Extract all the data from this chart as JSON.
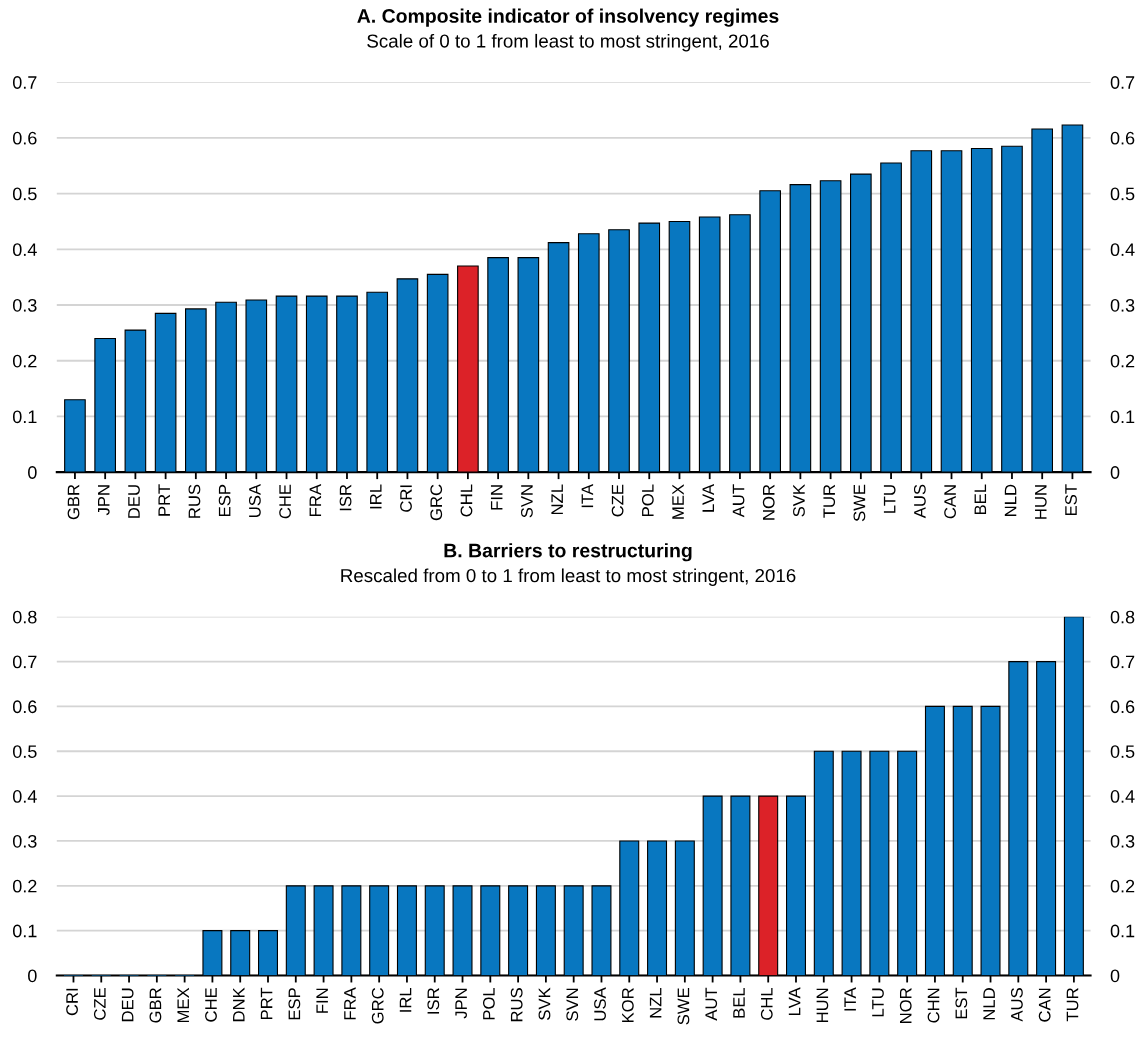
{
  "chart_data": [
    {
      "type": "bar",
      "title": "A. Composite indicator of insolvency regimes",
      "subtitle": "Scale of 0 to 1 from least to most stringent, 2016",
      "categories": [
        "GBR",
        "JPN",
        "DEU",
        "PRT",
        "RUS",
        "ESP",
        "USA",
        "CHE",
        "FRA",
        "ISR",
        "IRL",
        "CRI",
        "GRC",
        "CHL",
        "FIN",
        "SVN",
        "NZL",
        "ITA",
        "CZE",
        "POL",
        "MEX",
        "LVA",
        "AUT",
        "NOR",
        "SVK",
        "TUR",
        "SWE",
        "LTU",
        "AUS",
        "CAN",
        "BEL",
        "NLD",
        "HUN",
        "EST"
      ],
      "values": [
        0.13,
        0.24,
        0.255,
        0.285,
        0.293,
        0.305,
        0.309,
        0.316,
        0.316,
        0.316,
        0.323,
        0.347,
        0.355,
        0.37,
        0.385,
        0.385,
        0.412,
        0.428,
        0.435,
        0.447,
        0.45,
        0.458,
        0.462,
        0.505,
        0.516,
        0.523,
        0.535,
        0.555,
        0.577,
        0.577,
        0.581,
        0.585,
        0.616,
        0.623
      ],
      "colors": [
        "#0877c0",
        "#0877c0",
        "#0877c0",
        "#0877c0",
        "#0877c0",
        "#0877c0",
        "#0877c0",
        "#0877c0",
        "#0877c0",
        "#0877c0",
        "#0877c0",
        "#0877c0",
        "#0877c0",
        "#dc2228",
        "#0877c0",
        "#0877c0",
        "#0877c0",
        "#0877c0",
        "#0877c0",
        "#0877c0",
        "#0877c0",
        "#0877c0",
        "#0877c0",
        "#0877c0",
        "#0877c0",
        "#0877c0",
        "#0877c0",
        "#0877c0",
        "#0877c0",
        "#0877c0",
        "#0877c0",
        "#0877c0",
        "#0877c0",
        "#0877c0"
      ],
      "ylim": [
        0,
        0.7
      ],
      "yticks": [
        0,
        0.1,
        0.2,
        0.3,
        0.4,
        0.5,
        0.6,
        0.7
      ],
      "y2lim": [
        0,
        0.7
      ],
      "y2ticks": [
        0,
        0.1,
        0.2,
        0.3,
        0.4,
        0.5,
        0.6,
        0.7
      ],
      "grid": "y",
      "legend": false
    },
    {
      "type": "bar",
      "title": "B. Barriers to restructuring",
      "subtitle": "Rescaled from 0 to 1 from least to most stringent, 2016",
      "categories": [
        "CRI",
        "CZE",
        "DEU",
        "GBR",
        "MEX",
        "CHE",
        "DNK",
        "PRT",
        "ESP",
        "FIN",
        "FRA",
        "GRC",
        "IRL",
        "ISR",
        "JPN",
        "POL",
        "RUS",
        "SVK",
        "SVN",
        "USA",
        "KOR",
        "NZL",
        "SWE",
        "AUT",
        "BEL",
        "CHL",
        "LVA",
        "HUN",
        "ITA",
        "LTU",
        "NOR",
        "CHN",
        "EST",
        "NLD",
        "AUS",
        "CAN",
        "TUR"
      ],
      "values": [
        0,
        0,
        0,
        0,
        0,
        0.1,
        0.1,
        0.1,
        0.2,
        0.2,
        0.2,
        0.2,
        0.2,
        0.2,
        0.2,
        0.2,
        0.2,
        0.2,
        0.2,
        0.2,
        0.3,
        0.3,
        0.3,
        0.4,
        0.4,
        0.4,
        0.4,
        0.5,
        0.5,
        0.5,
        0.5,
        0.6,
        0.6,
        0.6,
        0.7,
        0.7,
        0.8
      ],
      "colors": [
        "#0877c0",
        "#0877c0",
        "#0877c0",
        "#0877c0",
        "#0877c0",
        "#0877c0",
        "#0877c0",
        "#0877c0",
        "#0877c0",
        "#0877c0",
        "#0877c0",
        "#0877c0",
        "#0877c0",
        "#0877c0",
        "#0877c0",
        "#0877c0",
        "#0877c0",
        "#0877c0",
        "#0877c0",
        "#0877c0",
        "#0877c0",
        "#0877c0",
        "#0877c0",
        "#0877c0",
        "#0877c0",
        "#dc2228",
        "#0877c0",
        "#0877c0",
        "#0877c0",
        "#0877c0",
        "#0877c0",
        "#0877c0",
        "#0877c0",
        "#0877c0",
        "#0877c0",
        "#0877c0",
        "#0877c0"
      ],
      "ylim": [
        0,
        0.8
      ],
      "yticks": [
        0,
        0.1,
        0.2,
        0.3,
        0.4,
        0.5,
        0.6,
        0.7,
        0.8
      ],
      "y2lim": [
        0,
        0.8
      ],
      "y2ticks": [
        0,
        0.1,
        0.2,
        0.3,
        0.4,
        0.5,
        0.6,
        0.7,
        0.8
      ],
      "grid": "y",
      "legend": false
    }
  ]
}
